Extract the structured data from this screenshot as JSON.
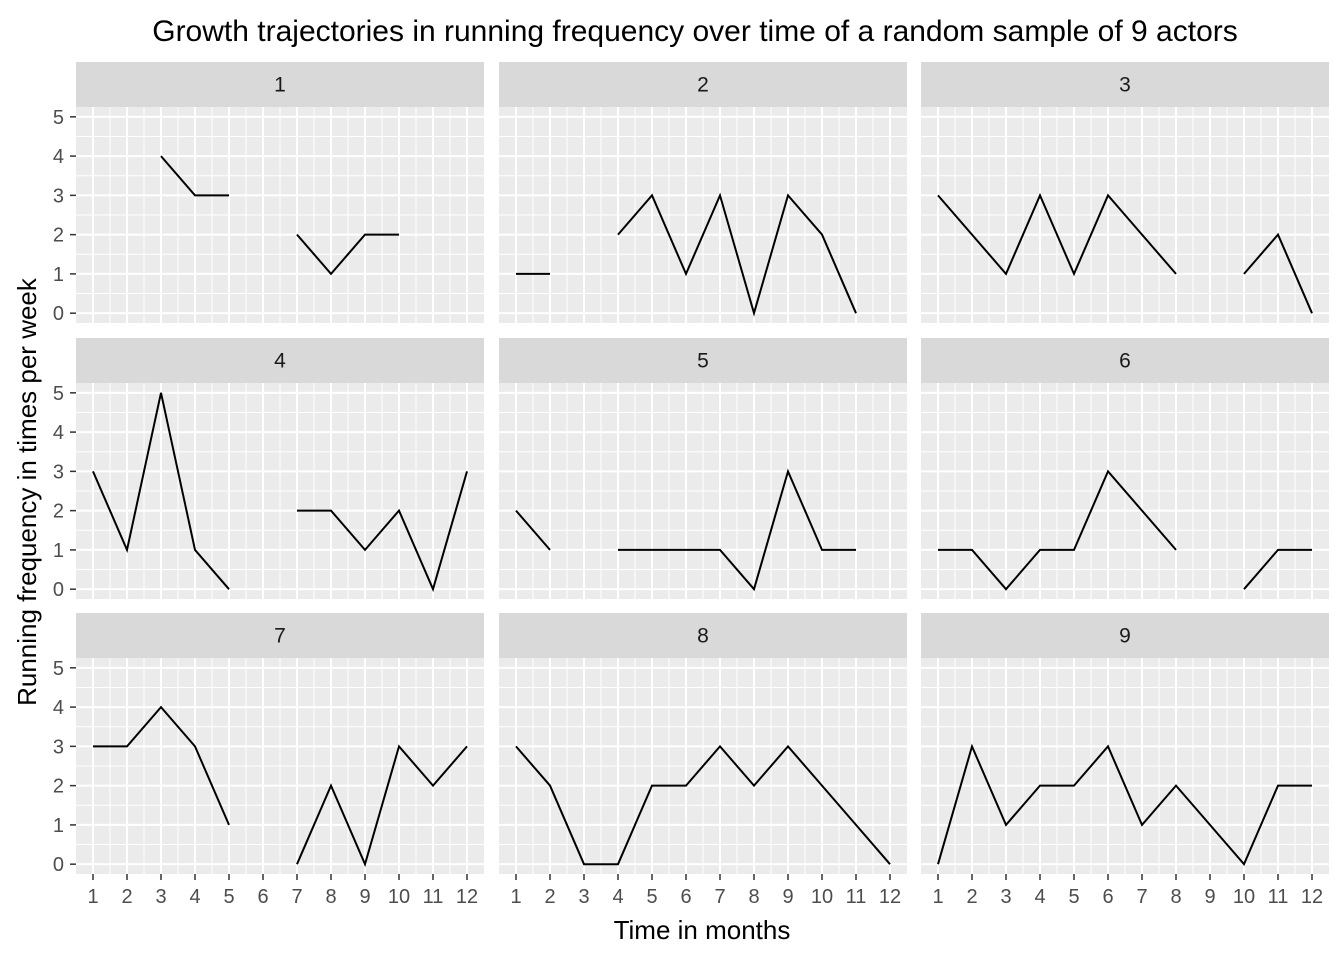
{
  "chart_data": {
    "type": "line",
    "title": "Growth trajectories in running frequency over time of a random sample of 9 actors",
    "xlabel": "Time in months",
    "ylabel": "Running frequency in times per week",
    "x_ticks": [
      "1",
      "2",
      "3",
      "4",
      "5",
      "6",
      "7",
      "8",
      "9",
      "10",
      "11",
      "12"
    ],
    "y_ticks": [
      "0",
      "1",
      "2",
      "3",
      "4",
      "5"
    ],
    "xlim": [
      0.5,
      12.5
    ],
    "ylim": [
      -0.25,
      5.25
    ],
    "grid": true,
    "panel_background": "#ebebeb",
    "strip_background": "#d9d9d9",
    "grid_color": "#ffffff",
    "line_color": "#000000",
    "facets": [
      {
        "label": "1",
        "values": [
          null,
          null,
          4,
          3,
          3,
          null,
          2,
          1,
          2,
          2,
          null,
          null
        ]
      },
      {
        "label": "2",
        "values": [
          1,
          1,
          null,
          2,
          3,
          1,
          3,
          0,
          3,
          2,
          0,
          null
        ]
      },
      {
        "label": "3",
        "values": [
          3,
          2,
          1,
          3,
          1,
          3,
          2,
          1,
          null,
          1,
          2,
          0
        ]
      },
      {
        "label": "4",
        "values": [
          3,
          1,
          5,
          1,
          0,
          null,
          2,
          2,
          1,
          2,
          0,
          3
        ]
      },
      {
        "label": "5",
        "values": [
          2,
          1,
          null,
          1,
          1,
          1,
          1,
          0,
          3,
          1,
          1,
          null
        ]
      },
      {
        "label": "6",
        "values": [
          1,
          1,
          0,
          1,
          1,
          3,
          2,
          1,
          null,
          0,
          1,
          1
        ]
      },
      {
        "label": "7",
        "values": [
          3,
          3,
          4,
          3,
          1,
          null,
          0,
          2,
          0,
          3,
          2,
          3
        ]
      },
      {
        "label": "8",
        "values": [
          3,
          2,
          0,
          0,
          2,
          2,
          3,
          2,
          3,
          2,
          1,
          0
        ]
      },
      {
        "label": "9",
        "values": [
          0,
          3,
          1,
          2,
          2,
          3,
          1,
          2,
          1,
          0,
          2,
          2
        ]
      }
    ]
  }
}
